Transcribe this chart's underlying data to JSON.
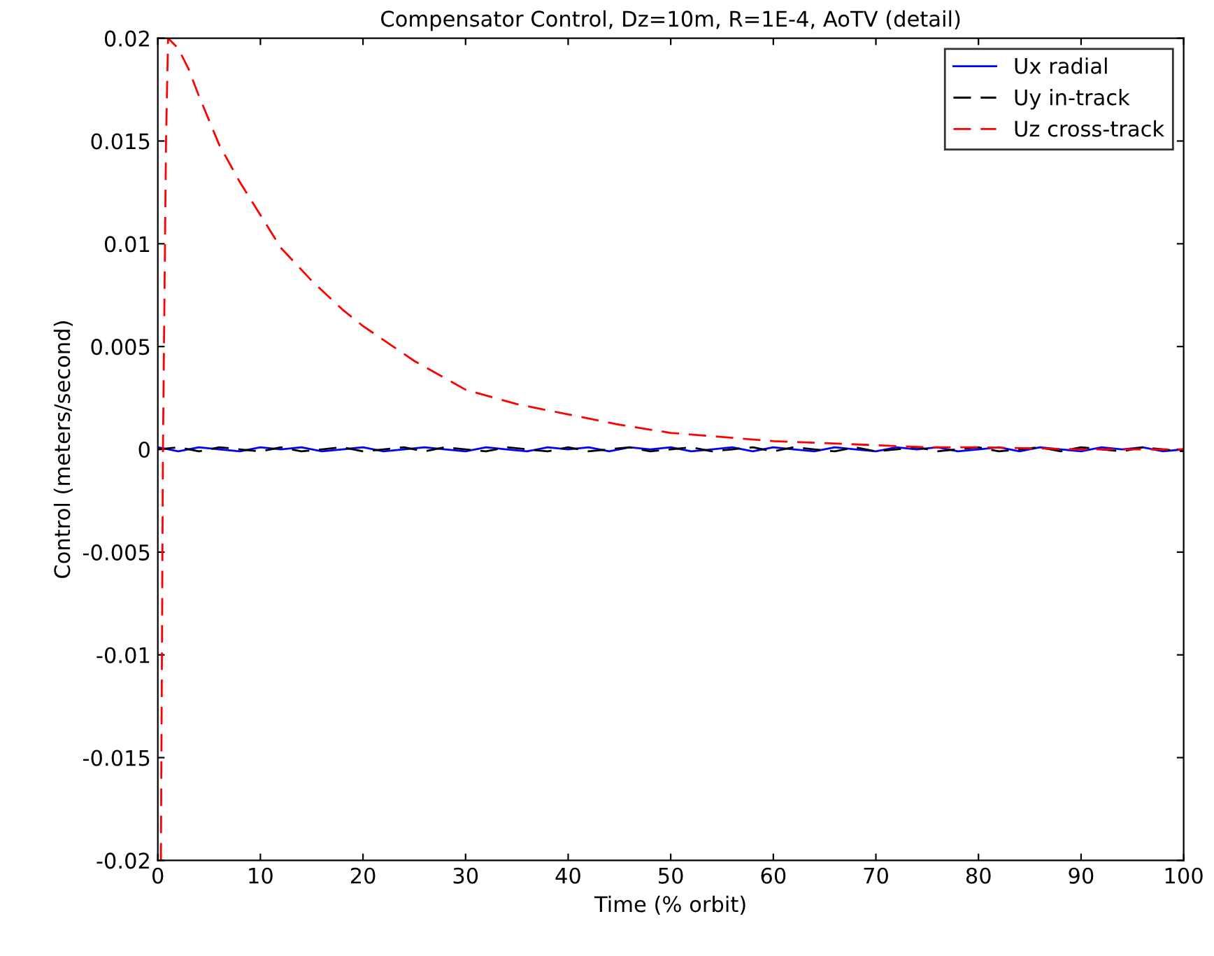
{
  "chart_data": {
    "type": "line",
    "title": "Compensator Control, Dz=10m, R=1E-4, AoTV (detail)",
    "xlabel": "Time (% orbit)",
    "ylabel": "Control (meters/second)",
    "xlim": [
      0,
      100
    ],
    "ylim": [
      -0.02,
      0.02
    ],
    "xticks": [
      0,
      10,
      20,
      30,
      40,
      50,
      60,
      70,
      80,
      90,
      100
    ],
    "yticks": [
      -0.02,
      -0.015,
      -0.01,
      -0.005,
      0,
      0.005,
      0.01,
      0.015,
      0.02
    ],
    "grid": false,
    "legend": "top right",
    "marker": "none",
    "series": [
      {
        "name": "Ux radial",
        "color": "#0000ff",
        "line_style": "solid",
        "x": [
          0,
          2,
          4,
          6,
          8,
          10,
          12,
          14,
          16,
          18,
          20,
          22,
          24,
          26,
          28,
          30,
          32,
          34,
          36,
          38,
          40,
          42,
          44,
          46,
          48,
          50,
          52,
          54,
          56,
          58,
          60,
          62,
          64,
          66,
          68,
          70,
          72,
          74,
          76,
          78,
          80,
          82,
          84,
          86,
          88,
          90,
          92,
          94,
          96,
          98,
          100
        ],
        "values": [
          0.0001,
          -0.0001,
          0.0001,
          0.0,
          -0.0001,
          0.0001,
          0.0,
          0.0001,
          -0.0001,
          0.0,
          0.0001,
          -0.0001,
          0.0,
          0.0001,
          0.0,
          -0.0001,
          0.0001,
          0.0,
          -0.0001,
          0.0001,
          0.0,
          0.0001,
          -0.0001,
          0.0001,
          0.0,
          0.0001,
          -0.0001,
          0.0,
          0.0001,
          -0.0001,
          0.0001,
          0.0,
          -0.0001,
          0.0001,
          0.0,
          -0.0001,
          0.0001,
          0.0,
          0.0001,
          -0.0001,
          0.0,
          0.0001,
          -0.0001,
          0.0001,
          0.0,
          -0.0001,
          0.0001,
          0.0,
          0.0001,
          -0.0001,
          0.0
        ]
      },
      {
        "name": "Uy in-track",
        "color": "#000000",
        "line_style": "dashed",
        "x": [
          0,
          2,
          4,
          6,
          8,
          10,
          12,
          14,
          16,
          18,
          20,
          22,
          24,
          26,
          28,
          30,
          32,
          34,
          36,
          38,
          40,
          42,
          44,
          46,
          48,
          50,
          52,
          54,
          56,
          58,
          60,
          62,
          64,
          66,
          68,
          70,
          72,
          74,
          76,
          78,
          80,
          82,
          84,
          86,
          88,
          90,
          92,
          94,
          96,
          98,
          100
        ],
        "values": [
          0.0,
          0.0001,
          -0.0001,
          0.0001,
          0.0,
          -0.0001,
          0.0001,
          -0.0001,
          0.0,
          0.0001,
          -0.0001,
          0.0,
          0.0001,
          -0.0001,
          0.0001,
          0.0,
          -0.0001,
          0.0001,
          0.0,
          -0.0001,
          0.0001,
          -0.0001,
          0.0,
          0.0001,
          -0.0001,
          0.0,
          0.0001,
          -0.0001,
          0.0,
          0.0001,
          -0.0001,
          0.0001,
          0.0,
          -0.0001,
          0.0001,
          -0.0001,
          0.0,
          0.0001,
          -0.0001,
          0.0,
          0.0001,
          -0.0001,
          0.0,
          0.0001,
          -0.0001,
          0.0001,
          0.0,
          -0.0001,
          0.0001,
          0.0,
          -0.0001
        ]
      },
      {
        "name": "Uz cross-track",
        "color": "#ff0000",
        "line_style": "dashed",
        "x": [
          0.3,
          0.5,
          0.8,
          1,
          2,
          3,
          4,
          5,
          6,
          8,
          10,
          12,
          15,
          18,
          20,
          25,
          30,
          35,
          40,
          45,
          50,
          55,
          60,
          65,
          70,
          75,
          80,
          90,
          100
        ],
        "values": [
          -0.02,
          0.0,
          0.015,
          0.02,
          0.0195,
          0.0185,
          0.0172,
          0.016,
          0.0148,
          0.013,
          0.0114,
          0.0098,
          0.0082,
          0.0068,
          0.006,
          0.0043,
          0.0029,
          0.0022,
          0.0017,
          0.0012,
          0.0008,
          0.0006,
          0.0004,
          0.0003,
          0.0002,
          0.0001,
          0.0001,
          0.0,
          0.0
        ]
      }
    ]
  }
}
